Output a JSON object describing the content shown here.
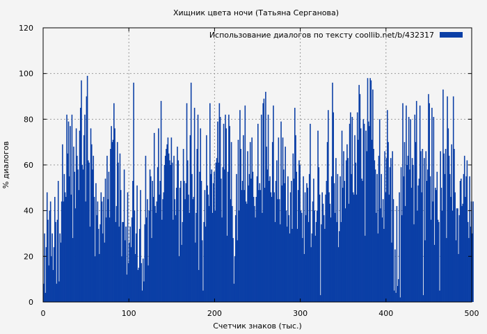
{
  "chart_data": {
    "type": "bar",
    "title": "Хищник цвета ночи (Татьяна Серганова)",
    "xlabel": "Счетчик знаков (тыс.)",
    "ylabel": "% диалогов",
    "xlim": [
      0,
      500
    ],
    "ylim": [
      0,
      120
    ],
    "x_ticks": [
      "0",
      "100",
      "200",
      "300",
      "400",
      "500"
    ],
    "y_ticks": [
      "0",
      "20",
      "40",
      "60",
      "80",
      "100",
      "120"
    ],
    "grid": true,
    "legend_position": "top-right",
    "series": [
      {
        "name": "Использование диалогов по тексту  coollib.net/b/432317",
        "color": "#0b3fa6",
        "x_step": 1,
        "values": [
          8,
          30,
          4,
          24,
          48,
          36,
          16,
          40,
          44,
          20,
          30,
          14,
          24,
          46,
          35,
          8,
          36,
          53,
          9,
          30,
          26,
          44,
          69,
          44,
          56,
          48,
          46,
          82,
          65,
          79,
          55,
          77,
          47,
          82,
          28,
          68,
          57,
          41,
          76,
          64,
          58,
          49,
          75,
          85,
          97,
          60,
          58,
          73,
          82,
          44,
          90,
          99,
          62,
          61,
          33,
          76,
          69,
          58,
          64,
          46,
          20,
          52,
          38,
          44,
          32,
          21,
          34,
          48,
          44,
          30,
          46,
          26,
          54,
          37,
          64,
          45,
          57,
          37,
          67,
          77,
          70,
          71,
          87,
          76,
          35,
          42,
          70,
          61,
          33,
          65,
          49,
          20,
          35,
          35,
          58,
          27,
          33,
          12,
          48,
          17,
          26,
          33,
          24,
          37,
          53,
          96,
          40,
          21,
          30,
          51,
          14,
          15,
          32,
          49,
          17,
          5,
          19,
          9,
          34,
          64,
          37,
          45,
          16,
          40,
          58,
          55,
          28,
          53,
          46,
          74,
          42,
          39,
          44,
          59,
          76,
          47,
          53,
          88,
          36,
          45,
          48,
          60,
          64,
          67,
          69,
          72,
          65,
          62,
          60,
          72,
          61,
          36,
          64,
          45,
          38,
          50,
          68,
          62,
          20,
          50,
          53,
          25,
          35,
          67,
          53,
          45,
          52,
          87,
          62,
          47,
          39,
          73,
          96,
          56,
          45,
          46,
          85,
          26,
          39,
          67,
          82,
          14,
          57,
          76,
          53,
          27,
          5,
          35,
          49,
          33,
          73,
          51,
          47,
          42,
          87,
          56,
          58,
          39,
          52,
          57,
          40,
          61,
          63,
          79,
          61,
          87,
          81,
          54,
          37,
          59,
          78,
          58,
          82,
          76,
          29,
          57,
          82,
          77,
          45,
          70,
          42,
          28,
          8,
          20,
          38,
          56,
          27,
          71,
          40,
          84,
          67,
          49,
          53,
          73,
          49,
          86,
          44,
          43,
          66,
          51,
          56,
          70,
          54,
          72,
          57,
          46,
          42,
          37,
          46,
          55,
          78,
          49,
          52,
          49,
          82,
          39,
          87,
          89,
          50,
          92,
          68,
          58,
          82,
          53,
          55,
          48,
          46,
          70,
          86,
          48,
          35,
          53,
          62,
          45,
          72,
          45,
          34,
          79,
          51,
          72,
          58,
          52,
          68,
          40,
          33,
          55,
          38,
          30,
          48,
          53,
          32,
          65,
          54,
          85,
          73,
          57,
          32,
          49,
          62,
          60,
          40,
          39,
          28,
          55,
          21,
          48,
          38,
          52,
          50,
          35,
          56,
          78,
          24,
          30,
          44,
          54,
          40,
          29,
          35,
          40,
          75,
          59,
          47,
          3,
          34,
          48,
          43,
          38,
          32,
          47,
          53,
          70,
          84,
          48,
          43,
          37,
          55,
          96,
          83,
          52,
          39,
          63,
          35,
          56,
          24,
          31,
          55,
          35,
          75,
          50,
          66,
          53,
          41,
          62,
          69,
          63,
          43,
          78,
          83,
          56,
          81,
          48,
          47,
          73,
          61,
          47,
          83,
          71,
          95,
          91,
          76,
          54,
          53,
          80,
          78,
          29,
          75,
          66,
          98,
          79,
          77,
          98,
          97,
          71,
          93,
          67,
          62,
          58,
          39,
          56,
          30,
          64,
          80,
          41,
          56,
          37,
          45,
          32,
          66,
          48,
          63,
          84,
          70,
          47,
          59,
          63,
          26,
          66,
          45,
          5,
          23,
          4,
          42,
          7,
          10,
          48,
          2,
          59,
          38,
          87,
          55,
          70,
          42,
          86,
          60,
          64,
          81,
          58,
          80,
          50,
          63,
          60,
          34,
          82,
          70,
          88,
          40,
          51,
          54,
          86,
          66,
          48,
          67,
          3,
          63,
          27,
          66,
          53,
          58,
          91,
          87,
          55,
          36,
          85,
          44,
          81,
          25,
          50,
          49,
          57,
          36,
          35,
          5,
          66,
          50,
          40,
          93,
          65,
          56,
          67,
          28,
          90,
          76,
          64,
          56,
          46,
          69,
          40,
          90,
          67,
          48,
          27,
          41,
          41,
          21,
          38,
          53,
          54,
          42,
          43,
          56,
          64,
          46,
          55,
          62,
          35,
          28,
          55,
          33,
          44,
          30,
          44
        ]
      }
    ]
  }
}
